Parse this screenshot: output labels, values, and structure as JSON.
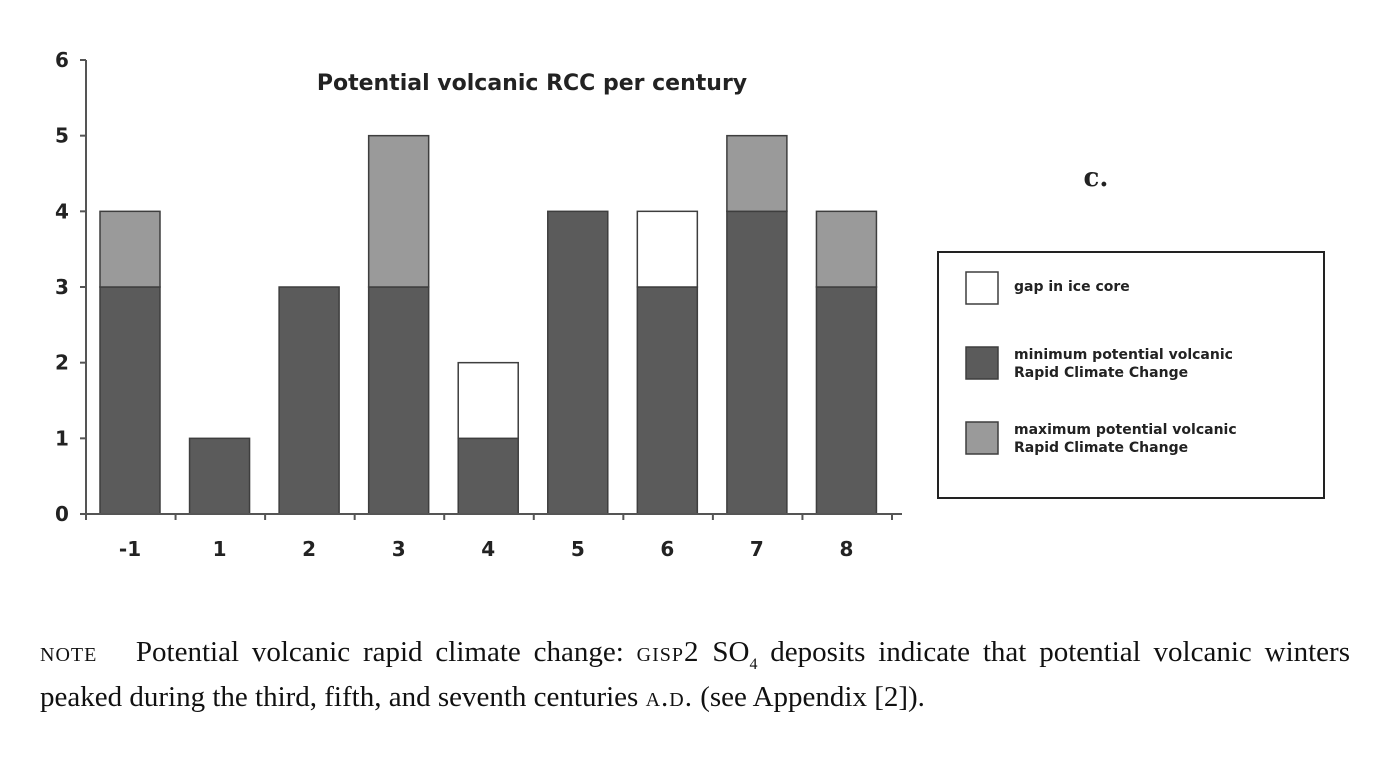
{
  "chart_data": {
    "type": "bar",
    "stacked": true,
    "title": "Potential volcanic RCC per century",
    "panel_label": "c.",
    "categories": [
      "-1",
      "1",
      "2",
      "3",
      "4",
      "5",
      "6",
      "7",
      "8"
    ],
    "series": [
      {
        "name": "minimum potential volcanic Rapid Climate Change",
        "key": "min",
        "values": [
          3,
          1,
          3,
          3,
          1,
          4,
          3,
          4,
          3
        ]
      },
      {
        "name": "gap in ice core",
        "key": "gap",
        "values": [
          0,
          0,
          0,
          0,
          1,
          0,
          1,
          0,
          0
        ]
      },
      {
        "name": "maximum potential volcanic Rapid Climate Change",
        "key": "max",
        "values": [
          1,
          0,
          0,
          2,
          0,
          0,
          0,
          1,
          1
        ]
      }
    ],
    "yticks": [
      "0",
      "1",
      "2",
      "3",
      "4",
      "5",
      "6"
    ],
    "ylim": [
      0,
      6
    ],
    "xlabel": "",
    "ylabel": "",
    "grid": false,
    "legend_position": "right",
    "legend": [
      {
        "key": "gap",
        "lines": [
          "gap in ice core"
        ]
      },
      {
        "key": "min",
        "lines": [
          "minimum potential volcanic",
          "Rapid Climate Change"
        ]
      },
      {
        "key": "max",
        "lines": [
          "maximum potential volcanic",
          "Rapid Climate Change"
        ]
      }
    ],
    "colors": {
      "min": "#5b5b5b",
      "max": "#9a9a9a",
      "gap": "#ffffff"
    }
  },
  "note": {
    "label": "note",
    "text_before_sub": "Potential volcanic rapid climate change: ",
    "gisp": "gisp2",
    "so": " SO",
    "subscript": "4",
    "text_after_sub": " deposits indicate that potential volcanic winters peaked during the third, fifth, and seventh centuries ",
    "ad": "a.d.",
    "text_end": " (see Appendix [2])."
  }
}
